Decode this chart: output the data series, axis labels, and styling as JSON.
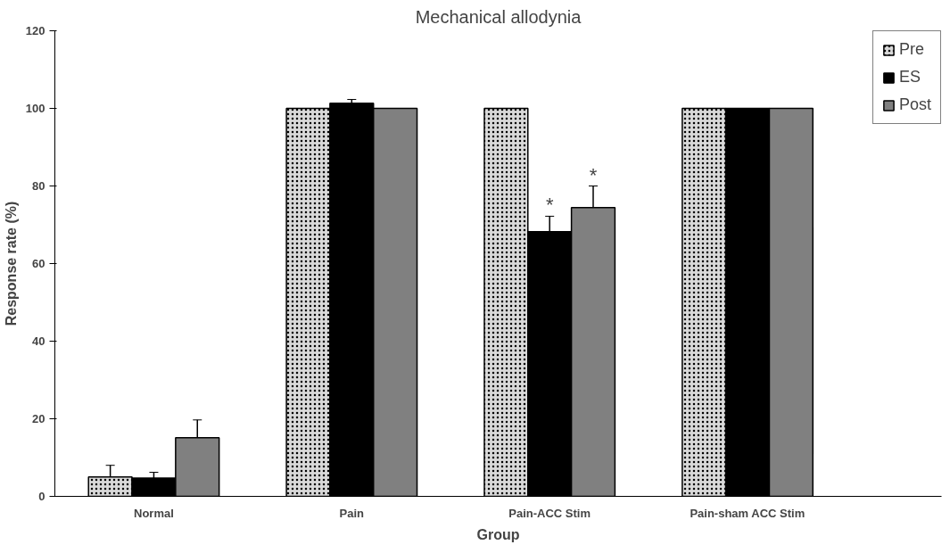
{
  "chart_data": {
    "type": "bar",
    "title": "Mechanical allodynia",
    "xlabel": "Group",
    "ylabel": "Response rate (%)",
    "categories": [
      "Normal",
      "Pain",
      "Pain-ACC Stim",
      "Pain-sham ACC Stim"
    ],
    "series": [
      {
        "name": "Pre",
        "color": "#d9d9d9",
        "values": [
          5,
          100,
          100,
          100
        ],
        "errors": [
          3,
          null,
          null,
          null
        ]
      },
      {
        "name": "ES",
        "color": "#000000",
        "values": [
          4.7,
          101.3,
          68.2,
          100
        ],
        "errors": [
          1.5,
          1,
          4,
          null
        ]
      },
      {
        "name": "Post",
        "color": "#808080",
        "values": [
          15.1,
          100,
          74.4,
          100
        ],
        "errors": [
          4.6,
          null,
          5.6,
          null
        ]
      }
    ],
    "ylim": [
      0,
      120
    ],
    "yticks": [
      0,
      20,
      40,
      60,
      80,
      100,
      120
    ],
    "grid": false,
    "legend": "top right",
    "annotations": [
      {
        "text": "*",
        "x": "Pain-ACC Stim",
        "y": 72.4
      },
      "*"
    ]
  }
}
